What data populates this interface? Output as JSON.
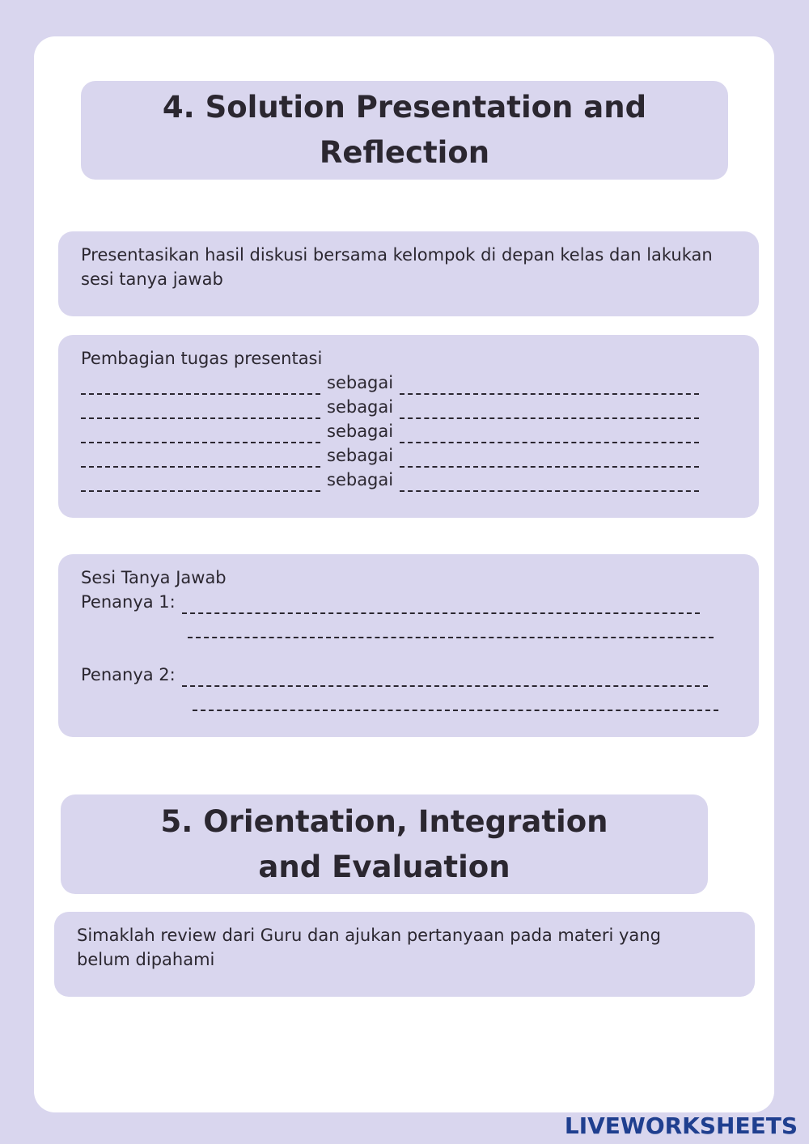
{
  "section4": {
    "title": "4. Solution Presentation and Reflection",
    "instruction": "Presentasikan hasil diskusi bersama kelompok di depan kelas dan lakukan sesi tanya jawab",
    "task_division": {
      "heading": "Pembagian tugas presentasi",
      "rows": [
        "sebagai",
        "sebagai",
        "sebagai",
        "sebagai",
        "sebagai"
      ]
    },
    "qa_session": {
      "heading": "Sesi Tanya Jawab",
      "askers": [
        "Penanya 1:",
        "Penanya 2:"
      ]
    }
  },
  "section5": {
    "title": "5. Orientation, Integration and Evaluation",
    "instruction": "Simaklah review dari Guru dan ajukan pertanyaan pada materi yang belum dipahami"
  },
  "footer": {
    "brand": "LIVEWORKSHEETS"
  }
}
